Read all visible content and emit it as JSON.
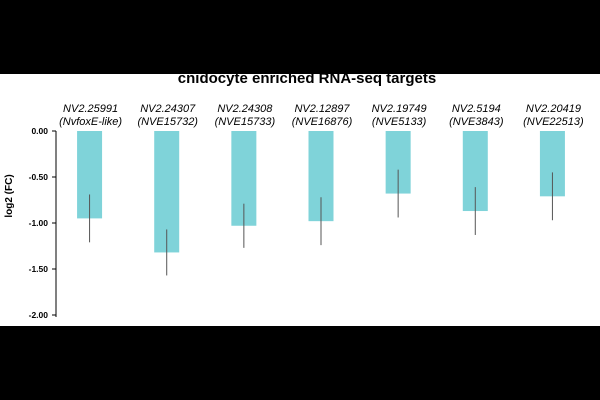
{
  "chart_data": {
    "type": "bar",
    "title": "cnidocyte enriched RNA-seq targets",
    "xlabel": "",
    "ylabel": "log2 (FC)",
    "ylim": [
      -2.0,
      0.0
    ],
    "yticks": [
      0.0,
      -0.5,
      -1.0,
      -1.5,
      -2.0
    ],
    "ytick_labels": [
      "0.00",
      "-0.50",
      "-1.00",
      "-1.50",
      "-2.00"
    ],
    "categories": [
      {
        "line1": "NV2.25991",
        "line2": "(NvfoxE-like)"
      },
      {
        "line1": "NV2.24307",
        "line2": "(NVE15732)"
      },
      {
        "line1": "NV2.24308",
        "line2": "(NVE15733)"
      },
      {
        "line1": "NV2.12897",
        "line2": "(NVE16876)"
      },
      {
        "line1": "NV2.19749",
        "line2": "(NVE5133)"
      },
      {
        "line1": "NV2.5194",
        "line2": "(NVE3843)"
      },
      {
        "line1": "NV2.20419",
        "line2": "(NVE22513)"
      }
    ],
    "values": [
      -0.95,
      -1.32,
      -1.03,
      -0.98,
      -0.68,
      -0.87,
      -0.71
    ],
    "error": [
      0.26,
      0.25,
      0.24,
      0.26,
      0.26,
      0.26,
      0.26
    ],
    "bar_color": "#7fd3d9",
    "error_color": "#555555"
  }
}
